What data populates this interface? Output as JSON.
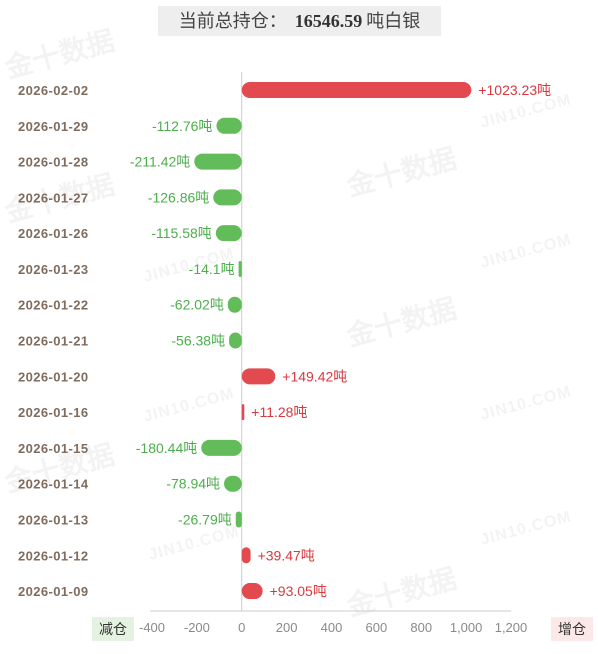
{
  "chart_data": {
    "type": "bar",
    "orientation": "horizontal",
    "title": {
      "label": "当前总持仓：",
      "value": "16546.59",
      "unit": "吨白银"
    },
    "categories": [
      "2026-02-02",
      "2026-01-29",
      "2026-01-28",
      "2026-01-27",
      "2026-01-26",
      "2026-01-23",
      "2026-01-22",
      "2026-01-21",
      "2026-01-20",
      "2026-01-16",
      "2026-01-15",
      "2026-01-14",
      "2026-01-13",
      "2026-01-12",
      "2026-01-09"
    ],
    "values": [
      1023.23,
      -112.76,
      -211.42,
      -126.86,
      -115.58,
      -14.1,
      -62.02,
      -56.38,
      149.42,
      11.28,
      -180.44,
      -78.94,
      -26.79,
      39.47,
      93.05
    ],
    "data_labels": [
      "+1023.23吨",
      "-112.76吨",
      "-211.42吨",
      "-126.86吨",
      "-115.58吨",
      "-14.1吨",
      "-62.02吨",
      "-56.38吨",
      "+149.42吨",
      "+11.28吨",
      "-180.44吨",
      "-78.94吨",
      "-26.79吨",
      "+39.47吨",
      "+93.05吨"
    ],
    "xticks": [
      -400,
      -200,
      0,
      200,
      400,
      600,
      800,
      1000,
      1200
    ],
    "xtick_labels": [
      "-400",
      "-200",
      "0",
      "200",
      "400",
      "600",
      "800",
      "1,000",
      "1,200"
    ],
    "xlim": [
      -400,
      1200
    ],
    "grid": false,
    "legend": {
      "negative": "减仓",
      "positive": "增仓"
    },
    "legend_placement": "bottom"
  },
  "watermark": {
    "logo_text": "金十数据",
    "site_text": "JIN10.COM"
  },
  "colors": {
    "increase": "#e24a4f",
    "decrease": "#62bc5a",
    "increase_text": "#d8393f",
    "decrease_text": "#4cae4c",
    "axis": "#cccccc"
  }
}
